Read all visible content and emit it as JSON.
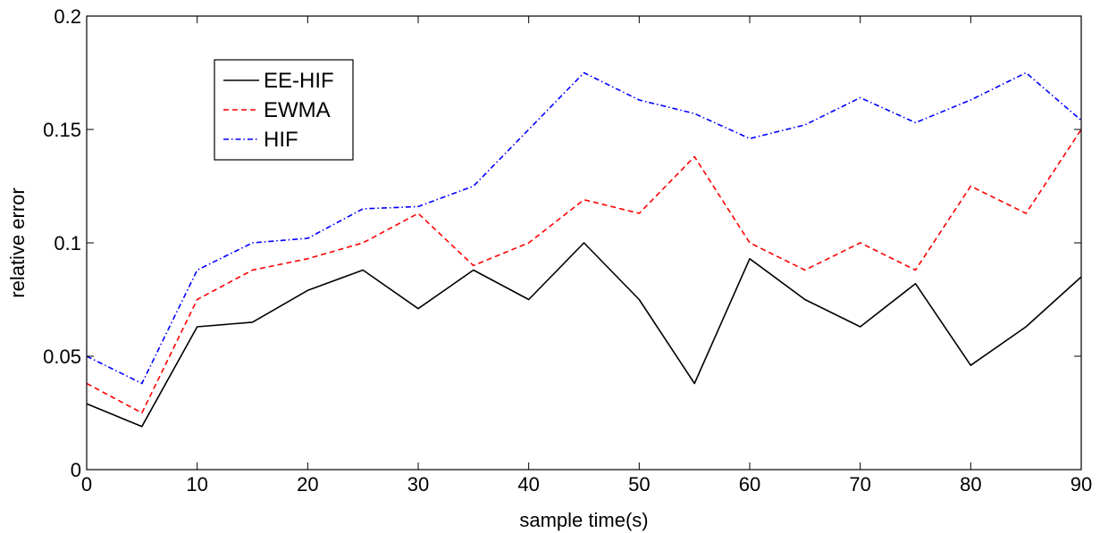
{
  "chart_data": {
    "type": "line",
    "title": "",
    "xlabel": "sample time(s)",
    "ylabel": "relative error",
    "xlim": [
      0,
      90
    ],
    "ylim": [
      0,
      0.2
    ],
    "xticks": [
      0,
      10,
      20,
      30,
      40,
      50,
      60,
      70,
      80,
      90
    ],
    "xtick_labels": [
      "0",
      "10",
      "20",
      "30",
      "40",
      "50",
      "60",
      "70",
      "80",
      "90"
    ],
    "yticks": [
      0,
      0.05,
      0.1,
      0.15,
      0.2
    ],
    "ytick_labels": [
      "0",
      "0.05",
      "0.1",
      "0.15",
      "0.2"
    ],
    "grid": false,
    "legend_position": "top-left",
    "x": [
      0,
      5,
      10,
      15,
      20,
      25,
      30,
      35,
      40,
      45,
      50,
      55,
      60,
      65,
      70,
      75,
      80,
      85,
      90
    ],
    "series": [
      {
        "name": "EE-HIF",
        "color": "#000000",
        "style": "solid",
        "values": [
          0.029,
          0.019,
          0.063,
          0.065,
          0.079,
          0.088,
          0.071,
          0.088,
          0.075,
          0.1,
          0.075,
          0.038,
          0.093,
          0.075,
          0.063,
          0.082,
          0.046,
          0.063,
          0.085
        ]
      },
      {
        "name": "EWMA",
        "color": "#ff0000",
        "style": "dashed",
        "values": [
          0.038,
          0.025,
          0.075,
          0.088,
          0.093,
          0.1,
          0.113,
          0.09,
          0.1,
          0.119,
          0.113,
          0.138,
          0.1,
          0.088,
          0.1,
          0.088,
          0.125,
          0.113,
          0.15
        ]
      },
      {
        "name": "HIF",
        "color": "#0000ff",
        "style": "dashdot",
        "values": [
          0.05,
          0.038,
          0.088,
          0.1,
          0.102,
          0.115,
          0.116,
          0.125,
          0.15,
          0.175,
          0.163,
          0.157,
          0.146,
          0.152,
          0.164,
          0.153,
          0.163,
          0.175,
          0.154
        ]
      }
    ]
  }
}
